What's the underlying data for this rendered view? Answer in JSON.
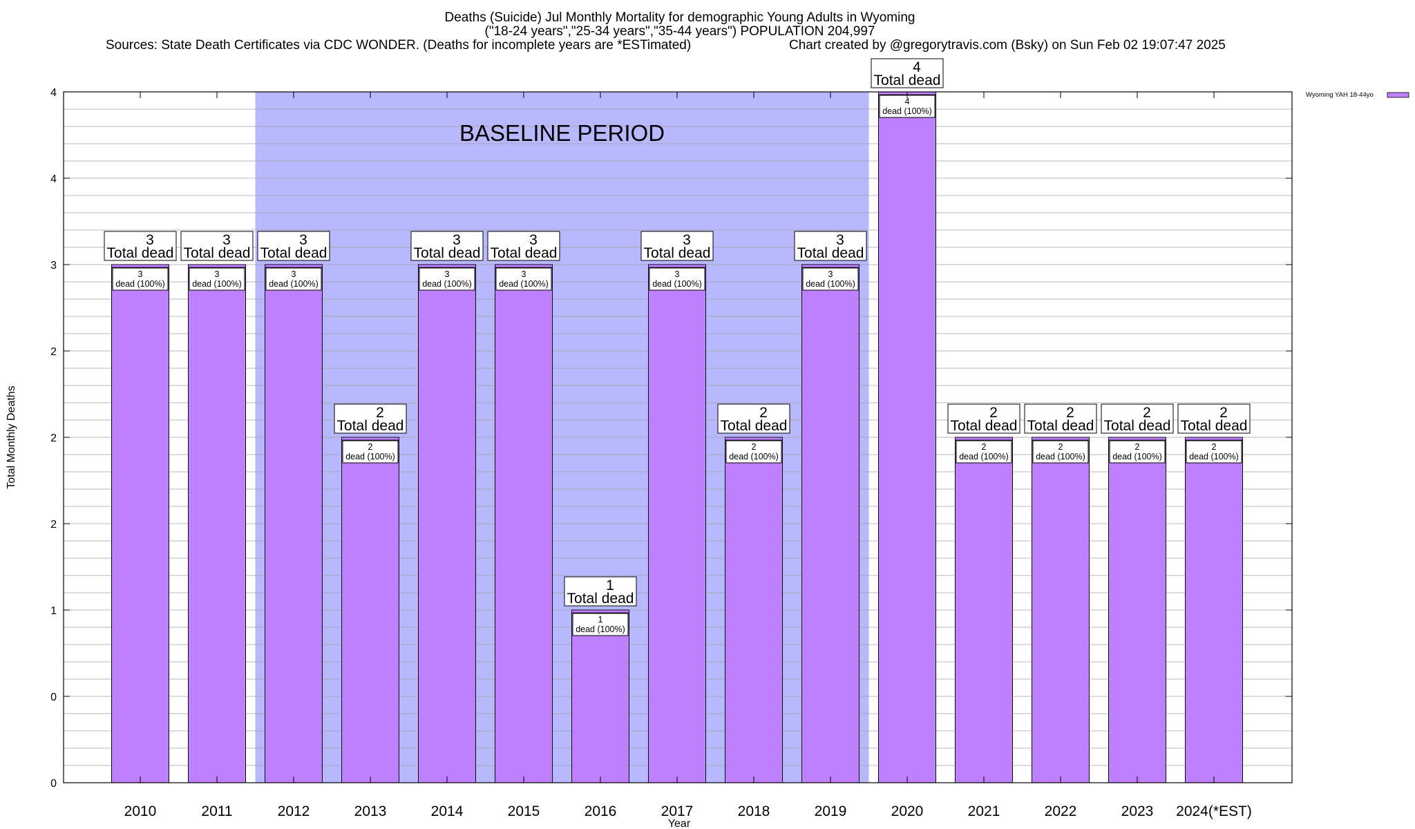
{
  "title_lines": [
    "Deaths (Suicide) Jul Monthly Mortality for demographic Young Adults in Wyoming",
    "(\"18-24 years\",\"25-34 years\",\"35-44 years\") POPULATION 204,997"
  ],
  "sources_text": "Sources: State Death Certificates via CDC WONDER. (Deaths for incomplete years are *ESTimated)",
  "credit_text": "Chart created by @gregorytravis.com (Bsky) on Sun Feb 02 19:07:47 2025",
  "baseline_label": "BASELINE PERIOD",
  "colors": {
    "bar_fill": "#bf80ff",
    "bar_stroke": "#000000",
    "baseline_fill": "#b8b8ff",
    "grid": "#a0a0a0"
  },
  "chart_data": {
    "type": "bar",
    "title": "Deaths (Suicide) Jul Monthly Mortality for demographic Young Adults in Wyoming",
    "xlabel": "Year",
    "ylabel": "Total Monthly Deaths",
    "categories": [
      "2010",
      "2011",
      "2012",
      "2013",
      "2014",
      "2015",
      "2016",
      "2017",
      "2018",
      "2019",
      "2020",
      "2021",
      "2022",
      "2023",
      "2024(*EST)"
    ],
    "series": [
      {
        "name": "Wyoming YAH 18-44yo",
        "values": [
          3,
          3,
          3,
          2,
          3,
          3,
          1,
          3,
          2,
          3,
          4,
          2,
          2,
          2,
          2
        ]
      }
    ],
    "top_labels": [
      "3",
      "3",
      "3",
      "2",
      "3",
      "3",
      "1",
      "3",
      "2",
      "3",
      "4",
      "2",
      "2",
      "2",
      "2"
    ],
    "top_label_suffix": "Total dead",
    "inner_labels": [
      "3",
      "3",
      "3",
      "2",
      "3",
      "3",
      "1",
      "3",
      "2",
      "3",
      "4",
      "2",
      "2",
      "2",
      "2"
    ],
    "inner_label_suffix": "dead (100%)",
    "ylim": [
      0,
      4
    ],
    "ytick_values": [
      0,
      0.5,
      1,
      1.5,
      2,
      2.5,
      3,
      3.5,
      4
    ],
    "ytick_labels": [
      "0",
      "0",
      "1",
      "2",
      "2",
      "2",
      "3",
      "4",
      "4"
    ],
    "baseline_period": [
      "2012",
      "2019"
    ],
    "legend_position": "top-right",
    "grid": true
  }
}
